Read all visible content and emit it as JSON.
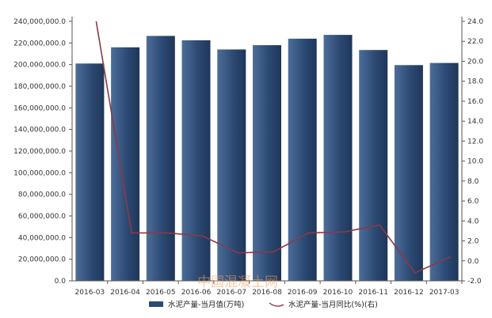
{
  "chart_data": {
    "type": "bar",
    "categories": [
      "2016-03",
      "2016-04",
      "2016-05",
      "2016-06",
      "2016-07",
      "2016-08",
      "2016-09",
      "2016-10",
      "2016-11",
      "2016-12",
      "2017-03"
    ],
    "series": [
      {
        "name": "水泥产量-当月值(万吨)",
        "type": "bar",
        "axis": "left",
        "values": [
          201000000,
          216000000,
          226500000,
          222500000,
          214000000,
          218000000,
          224000000,
          227500000,
          213500000,
          199500000,
          201500000
        ]
      },
      {
        "name": "水泥产量-当月同比(%)(右)",
        "type": "line",
        "axis": "right",
        "values": [
          24.0,
          2.8,
          2.8,
          2.5,
          0.8,
          0.9,
          2.8,
          2.9,
          3.6,
          -1.2,
          0.4
        ]
      }
    ],
    "y_left": {
      "ylim": [
        0,
        240000000
      ],
      "ticks": [
        "0.0",
        "20,000,000.0",
        "40,000,000.0",
        "60,000,000.0",
        "80,000,000.0",
        "100,000,000.0",
        "120,000,000.0",
        "140,000,000.0",
        "160,000,000.0",
        "180,000,000.0",
        "200,000,000.0",
        "220,000,000.0",
        "240,000,000.0"
      ]
    },
    "y_right": {
      "ylim": [
        -2,
        24
      ],
      "ticks": [
        "-2.0",
        "0.0",
        "2.0",
        "4.0",
        "6.0",
        "8.0",
        "10.0",
        "12.0",
        "14.0",
        "16.0",
        "18.0",
        "20.0",
        "22.0",
        "24.0"
      ]
    },
    "legend": {
      "placement": "bottom-center"
    },
    "grid": false,
    "colors": {
      "bar": "#2c4a74",
      "bar_light": "#4d6d99",
      "line": "#8b3a45",
      "axis": "#555555"
    }
  },
  "watermark": "中国混凝土网"
}
